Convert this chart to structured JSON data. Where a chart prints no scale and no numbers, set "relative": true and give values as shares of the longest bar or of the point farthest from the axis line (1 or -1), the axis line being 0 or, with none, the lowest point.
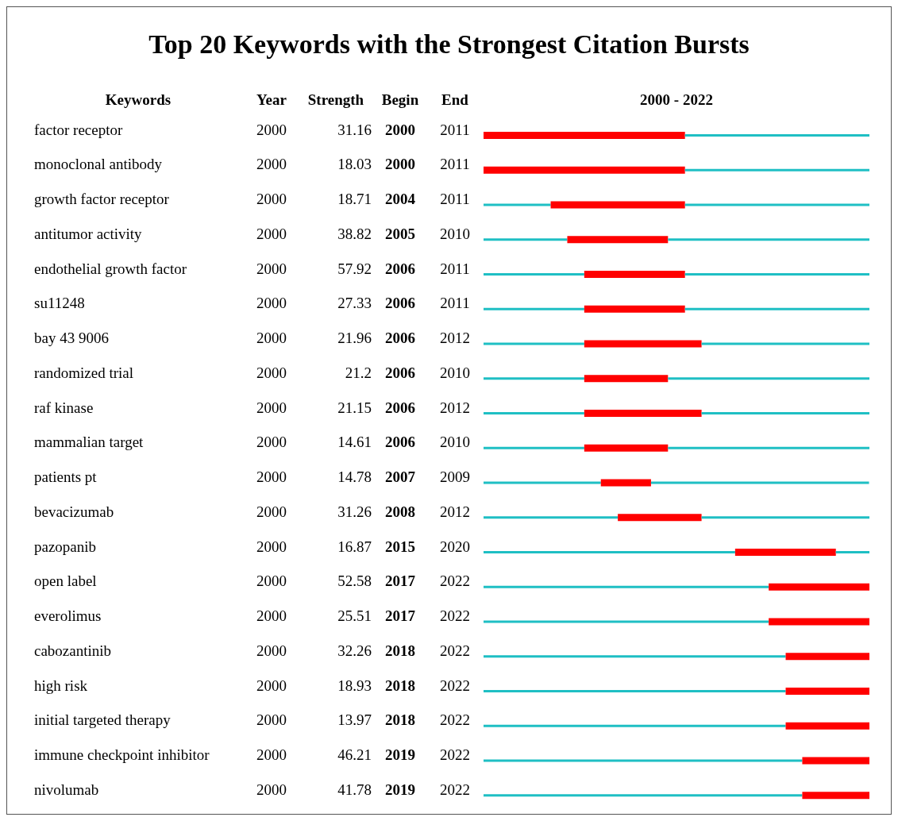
{
  "chart_data": {
    "type": "bar",
    "orientation": "horizontal",
    "title": "Top 20 Keywords with the Strongest Citation Bursts",
    "ylabel": "Keywords",
    "categories": [
      "factor receptor",
      "monoclonal antibody",
      "growth factor receptor",
      "antitumor activity",
      "endothelial growth factor",
      "su11248",
      "bay 43 9006",
      "randomized trial",
      "raf kinase",
      "mammalian target",
      "patients pt",
      "bevacizumab",
      "pazopanib",
      "open label",
      "everolimus",
      "cabozantinib",
      "high risk",
      "initial targeted therapy",
      "immune checkpoint inhibitor",
      "nivolumab"
    ],
    "relative": true,
    "tick_labels": "y",
    "grid": false,
    "legend": false,
    "stacked": true,
    "series": [
      {
        "color": "#1fbfc4",
        "values": [
          0,
          0,
          0.174,
          0.217,
          0.261,
          0.261,
          0.261,
          0.261,
          0.261,
          0.261,
          0.304,
          0.348,
          0.652,
          0.739,
          0.739,
          0.783,
          0.783,
          0.783,
          0.826,
          0.826
        ]
      },
      {
        "color": "#ff0000",
        "values": [
          0.522,
          0.522,
          0.348,
          0.261,
          0.261,
          0.261,
          0.304,
          0.217,
          0.304,
          0.217,
          0.13,
          0.217,
          0.261,
          0.261,
          0.261,
          0.217,
          0.217,
          0.217,
          0.174,
          0.174
        ]
      },
      {
        "color": "#1fbfc4",
        "values": [
          0.478,
          0.478,
          0.478,
          0.522,
          0.478,
          0.478,
          0.435,
          0.522,
          0.435,
          0.522,
          0.565,
          0.435,
          0.087,
          0,
          0,
          0,
          0,
          0,
          0,
          0
        ]
      }
    ],
    "annotations": [
      "2000 - 2022",
      "Year",
      "Strength",
      "Begin",
      "End",
      "2000",
      "31.16",
      "2000",
      "2011",
      "2000",
      "18.03",
      "2000",
      "2011",
      "2000",
      "18.71",
      "2004",
      "2011",
      "2000",
      "38.82",
      "2005",
      "2010",
      "2000",
      "57.92",
      "2006",
      "2011",
      "2000",
      "27.33",
      "2006",
      "2011",
      "2000",
      "21.96",
      "2006",
      "2012",
      "2000",
      "21.2",
      "2006",
      "2010",
      "2000",
      "21.15",
      "2006",
      "2012",
      "2000",
      "14.61",
      "2006",
      "2010",
      "2000",
      "14.78",
      "2007",
      "2009",
      "2000",
      "31.26",
      "2008",
      "2012",
      "2000",
      "16.87",
      "2015",
      "2020",
      "2000",
      "52.58",
      "2017",
      "2022",
      "2000",
      "25.51",
      "2017",
      "2022",
      "2000",
      "32.26",
      "2018",
      "2022",
      "2000",
      "18.93",
      "2018",
      "2022",
      "2000",
      "13.97",
      "2018",
      "2022",
      "2000",
      "46.21",
      "2019",
      "2022",
      "2000",
      "41.78",
      "2019",
      "2022"
    ]
  }
}
